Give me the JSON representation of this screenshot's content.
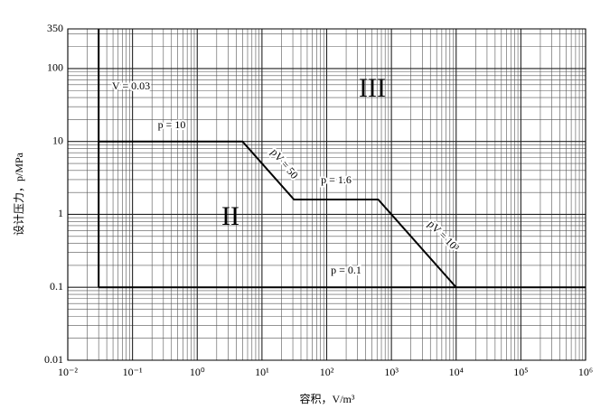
{
  "chart_data": {
    "type": "line",
    "x_label": "容积，V/m³",
    "y_label": "设计压力，p/MPa",
    "xscale": "log",
    "yscale": "log",
    "grid": true,
    "xlim": [
      0.01,
      1000000
    ],
    "ylim": [
      0.01,
      350
    ],
    "xticks": [
      {
        "value": 0.01,
        "label": "10⁻²"
      },
      {
        "value": 0.1,
        "label": "10⁻¹"
      },
      {
        "value": 1,
        "label": "10⁰"
      },
      {
        "value": 10,
        "label": "10¹"
      },
      {
        "value": 100,
        "label": "10²"
      },
      {
        "value": 1000,
        "label": "10³"
      },
      {
        "value": 10000,
        "label": "10⁴"
      },
      {
        "value": 100000,
        "label": "10⁵"
      },
      {
        "value": 1000000,
        "label": "10⁶"
      }
    ],
    "yticks": [
      0.01,
      0.1,
      1,
      10,
      100,
      350
    ],
    "series": [
      {
        "color": "#000000",
        "x": [
          0.03,
          0.03
        ],
        "values": [
          0.1,
          350
        ]
      },
      {
        "color": "#000000",
        "x": [
          0.03,
          5,
          31.25,
          625,
          10000
        ],
        "values": [
          10,
          10,
          1.6,
          1.6,
          0.1
        ]
      },
      {
        "color": "#000000",
        "x": [
          0.03,
          1000000
        ],
        "values": [
          0.1,
          0.1
        ]
      }
    ],
    "annotations": [
      "V = 0.03",
      "p = 10",
      "pV = 50",
      "p = 1.6",
      "pV = 10³",
      "p = 0.1",
      "III",
      "II"
    ]
  }
}
